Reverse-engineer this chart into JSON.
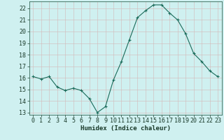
{
  "x": [
    0,
    1,
    2,
    3,
    4,
    5,
    6,
    7,
    8,
    9,
    10,
    11,
    12,
    13,
    14,
    15,
    16,
    17,
    18,
    19,
    20,
    21,
    22,
    23
  ],
  "y": [
    16.1,
    15.9,
    16.1,
    15.2,
    14.9,
    15.1,
    14.9,
    14.2,
    13.0,
    13.5,
    15.8,
    17.4,
    19.3,
    21.2,
    21.8,
    22.3,
    22.3,
    21.6,
    21.0,
    19.8,
    18.1,
    17.4,
    16.6,
    16.1
  ],
  "line_color": "#1a6b5a",
  "marker": "+",
  "marker_size": 3,
  "background_color": "#cff0f0",
  "grid_color_minor": "#d4b8b8",
  "grid_color_major": "#d4b8b8",
  "xlabel": "Humidex (Indice chaleur)",
  "ylim": [
    12.8,
    22.6
  ],
  "yticks": [
    13,
    14,
    15,
    16,
    17,
    18,
    19,
    20,
    21,
    22
  ],
  "xticks": [
    0,
    1,
    2,
    3,
    4,
    5,
    6,
    7,
    8,
    9,
    10,
    11,
    12,
    13,
    14,
    15,
    16,
    17,
    18,
    19,
    20,
    21,
    22,
    23
  ],
  "xtick_labels": [
    "0",
    "1",
    "2",
    "3",
    "4",
    "5",
    "6",
    "7",
    "8",
    "9",
    "10",
    "11",
    "12",
    "13",
    "14",
    "15",
    "16",
    "17",
    "18",
    "19",
    "20",
    "21",
    "22",
    "23"
  ],
  "xlabel_fontsize": 6.5,
  "tick_fontsize": 6.0,
  "line_width": 0.8,
  "spine_color": "#336655",
  "marker_edge_width": 0.8
}
